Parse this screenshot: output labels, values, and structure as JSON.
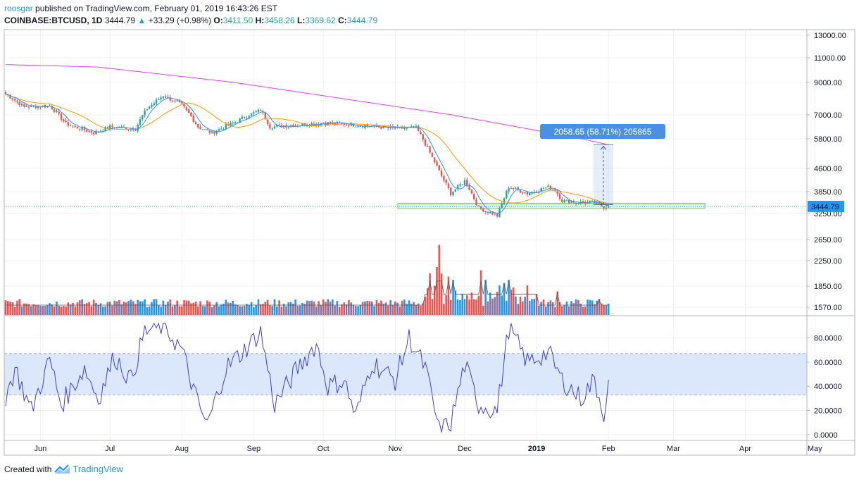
{
  "header": {
    "user": "roosgar",
    "published_text": "published on TradingView.com, February 01, 2019 16:43:26 EST",
    "symbol": "COINBASE:BTCUSD, 1D",
    "last": "3444.79",
    "change": "+33.29 (+0.98%)",
    "open_label": "O:",
    "open": "3411.50",
    "high_label": "H:",
    "high": "3458.26",
    "low_label": "L:",
    "low": "3369.62",
    "close_label": "C:",
    "close": "3444.79"
  },
  "footer": {
    "created_with": "Created with",
    "brand": "TradingView"
  },
  "colors": {
    "up": "#26a69a",
    "down": "#ef5350",
    "vol_up": "#2196f3",
    "vol_down": "#ef5350",
    "ma_long": "#e040fb",
    "ma_mid": "#ff9800",
    "ma_short": "#2196f3",
    "rsi": "#3f3fd9",
    "rsi_band": "#dbe7fb",
    "price_line": "#2196f3",
    "zone": "#66dd66",
    "measure": "#4a90e2"
  },
  "chart_data": {
    "type": "candlestick",
    "symbol": "COINBASE:BTCUSD",
    "interval": "1D",
    "price_axis_ticks": [
      "13000.00",
      "11000.00",
      "9000.00",
      "7000.00",
      "5800.00",
      "4600.00",
      "3850.00",
      "3250.00",
      "2650.00",
      "2250.00",
      "1850.00",
      "1570.00"
    ],
    "current_price_label": "3444.79",
    "rsi_axis_ticks": [
      "80.0000",
      "60.0000",
      "40.0000",
      "20.0000",
      "0.0000"
    ],
    "rsi_band": [
      33,
      67
    ],
    "x_labels": [
      "Jun",
      "Jul",
      "Aug",
      "Sep",
      "Oct",
      "Nov",
      "Dec",
      "2019",
      "Feb",
      "Mar",
      "Apr",
      "May"
    ],
    "measure_label": "2058.65 (58.71%) 205865",
    "measure_from": 3500,
    "measure_to": 5560,
    "support_zone": [
      3390,
      3530
    ],
    "x_start_day": "2018-05-17",
    "last_day": "2019-02-01",
    "close_anchors": [
      [
        "2018-05-17",
        8300
      ],
      [
        "2018-05-25",
        7500
      ],
      [
        "2018-06-05",
        7550
      ],
      [
        "2018-06-12",
        6550
      ],
      [
        "2018-06-24",
        6100
      ],
      [
        "2018-07-01",
        6400
      ],
      [
        "2018-07-12",
        6300
      ],
      [
        "2018-07-17",
        7400
      ],
      [
        "2018-07-24",
        8200
      ],
      [
        "2018-08-01",
        7600
      ],
      [
        "2018-08-08",
        6400
      ],
      [
        "2018-08-14",
        6100
      ],
      [
        "2018-08-25",
        6700
      ],
      [
        "2018-09-04",
        7300
      ],
      [
        "2018-09-08",
        6400
      ],
      [
        "2018-09-20",
        6500
      ],
      [
        "2018-10-01",
        6600
      ],
      [
        "2018-10-10",
        6550
      ],
      [
        "2018-10-15",
        6500
      ],
      [
        "2018-10-31",
        6320
      ],
      [
        "2018-11-10",
        6350
      ],
      [
        "2018-11-14",
        5600
      ],
      [
        "2018-11-20",
        4500
      ],
      [
        "2018-11-25",
        3800
      ],
      [
        "2018-12-01",
        4200
      ],
      [
        "2018-12-07",
        3400
      ],
      [
        "2018-12-15",
        3200
      ],
      [
        "2018-12-20",
        4000
      ],
      [
        "2018-12-28",
        3800
      ],
      [
        "2019-01-06",
        4000
      ],
      [
        "2019-01-09",
        3900
      ],
      [
        "2019-01-12",
        3600
      ],
      [
        "2019-01-20",
        3550
      ],
      [
        "2019-01-26",
        3550
      ],
      [
        "2019-01-30",
        3430
      ],
      [
        "2019-02-01",
        3444.79
      ]
    ],
    "rsi_anchors": [
      [
        "2018-05-17",
        30
      ],
      [
        "2018-05-21",
        55
      ],
      [
        "2018-05-28",
        20
      ],
      [
        "2018-06-05",
        62
      ],
      [
        "2018-06-10",
        25
      ],
      [
        "2018-06-20",
        55
      ],
      [
        "2018-06-26",
        30
      ],
      [
        "2018-07-03",
        65
      ],
      [
        "2018-07-10",
        45
      ],
      [
        "2018-07-16",
        85
      ],
      [
        "2018-07-24",
        90
      ],
      [
        "2018-08-01",
        70
      ],
      [
        "2018-08-08",
        25
      ],
      [
        "2018-08-12",
        8
      ],
      [
        "2018-08-20",
        55
      ],
      [
        "2018-08-28",
        70
      ],
      [
        "2018-09-04",
        85
      ],
      [
        "2018-09-10",
        25
      ],
      [
        "2018-09-20",
        55
      ],
      [
        "2018-09-28",
        75
      ],
      [
        "2018-10-03",
        40
      ],
      [
        "2018-10-10",
        45
      ],
      [
        "2018-10-15",
        15
      ],
      [
        "2018-10-22",
        60
      ],
      [
        "2018-11-01",
        45
      ],
      [
        "2018-11-07",
        80
      ],
      [
        "2018-11-14",
        55
      ],
      [
        "2018-11-20",
        3
      ],
      [
        "2018-11-25",
        10
      ],
      [
        "2018-12-01",
        58
      ],
      [
        "2018-12-07",
        25
      ],
      [
        "2018-12-15",
        20
      ],
      [
        "2018-12-20",
        88
      ],
      [
        "2018-12-28",
        60
      ],
      [
        "2019-01-06",
        68
      ],
      [
        "2019-01-12",
        45
      ],
      [
        "2019-01-20",
        30
      ],
      [
        "2019-01-26",
        45
      ],
      [
        "2019-01-30",
        18
      ],
      [
        "2019-02-01",
        40
      ]
    ],
    "volume_spikes": [
      [
        "2018-11-20",
        2550
      ],
      [
        "2018-11-16",
        2050
      ],
      [
        "2018-11-19",
        2150
      ],
      [
        "2018-11-21",
        2050
      ],
      [
        "2018-11-24",
        2000
      ],
      [
        "2018-11-26",
        1950
      ],
      [
        "2018-12-08",
        2100
      ],
      [
        "2018-12-10",
        1950
      ],
      [
        "2018-12-18",
        1900
      ],
      [
        "2018-12-20",
        1950
      ],
      [
        "2019-01-10",
        1780
      ],
      [
        "2019-01-28",
        1680
      ]
    ]
  }
}
